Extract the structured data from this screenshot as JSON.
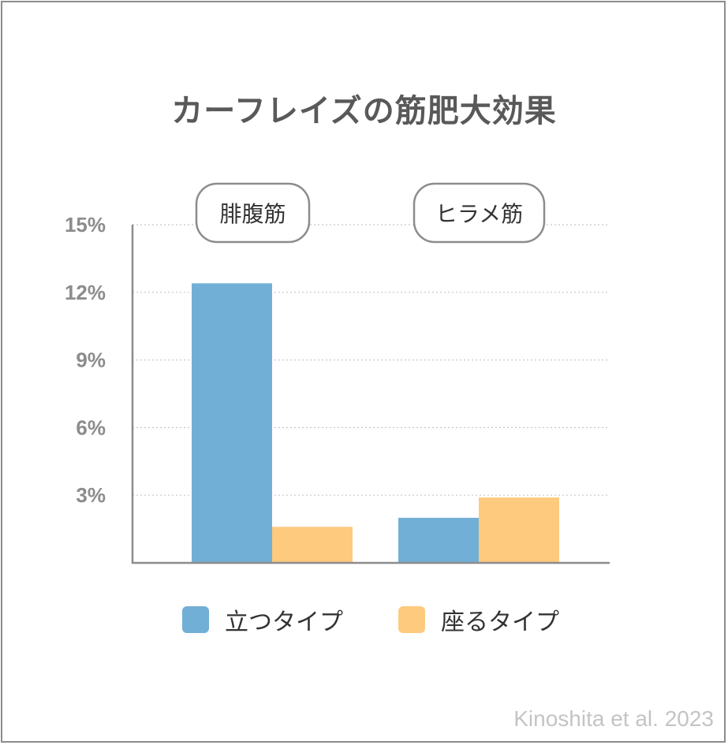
{
  "title": "カーフレイズの筋肥大効果",
  "source": "Kinoshita et al. 2023",
  "colors": {
    "standing": "#72afd6",
    "seated": "#fdca7e",
    "axis": "#8c8c8c",
    "grid": "#c8c8c8"
  },
  "chart_data": {
    "type": "bar",
    "categories": [
      "腓腹筋",
      "ヒラメ筋"
    ],
    "series": [
      {
        "name": "立つタイプ",
        "values": [
          12.4,
          2.0
        ]
      },
      {
        "name": "座るタイプ",
        "values": [
          1.6,
          2.9
        ]
      }
    ],
    "yticks": [
      "3%",
      "6%",
      "9%",
      "12%",
      "15%"
    ],
    "ytick_values": [
      3,
      6,
      9,
      12,
      15
    ],
    "ylim": [
      0,
      15
    ],
    "grid": true,
    "legend_position": "bottom"
  }
}
